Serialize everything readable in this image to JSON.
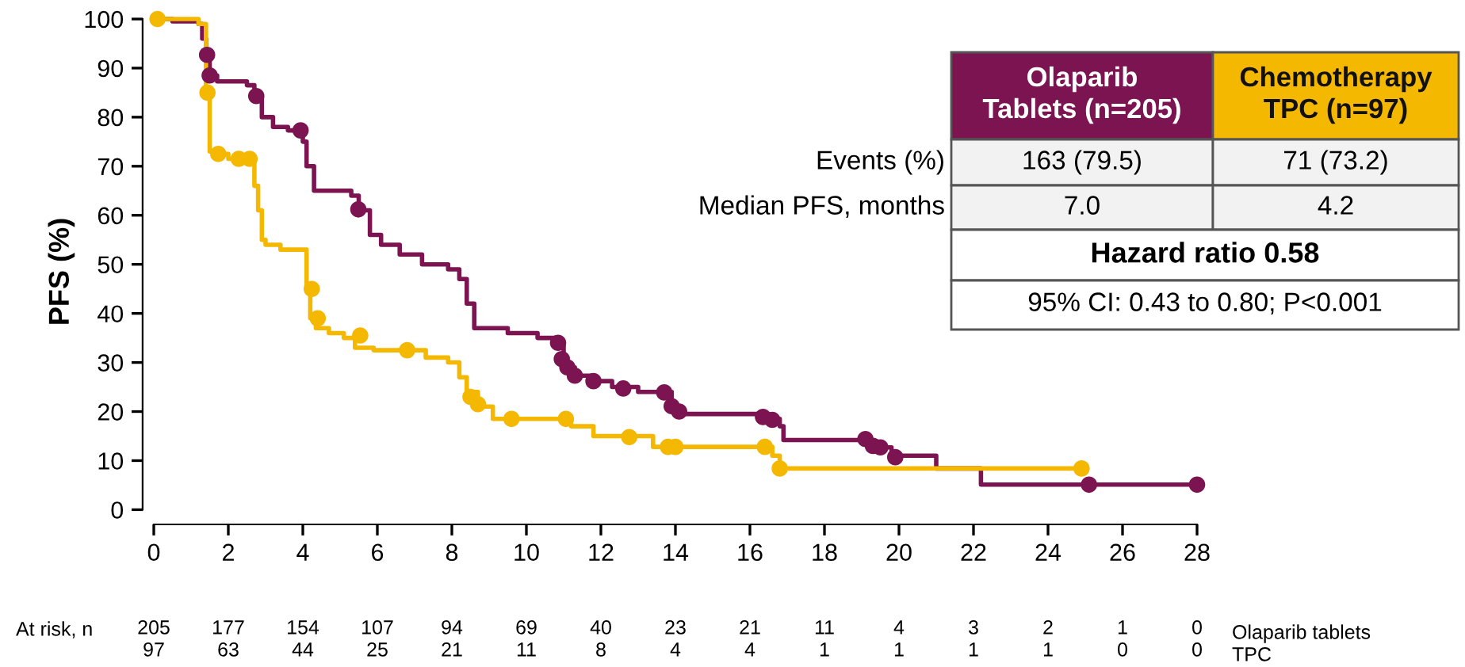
{
  "chart_data": {
    "type": "step",
    "ylabel": "PFS (%)",
    "xlim": [
      -0.3,
      28
    ],
    "ylim": [
      -3,
      100
    ],
    "xticks": [
      0,
      2,
      4,
      6,
      8,
      10,
      12,
      14,
      16,
      18,
      20,
      22,
      24,
      26,
      28
    ],
    "yticks": [
      0,
      10,
      20,
      30,
      40,
      50,
      60,
      70,
      80,
      90,
      100
    ],
    "grid": false,
    "legend": false,
    "line_style": "solid",
    "series": [
      {
        "color": "#7b1450",
        "x": [
          0,
          0.5,
          1.2,
          1.3,
          1.4,
          1.5,
          1.7,
          2.5,
          2.7,
          2.9,
          3.2,
          3.6,
          4.0,
          4.1,
          4.3,
          5.3,
          5.5,
          5.8,
          6.1,
          6.6,
          7.2,
          7.9,
          8.2,
          8.4,
          8.6,
          9.5,
          10.3,
          10.9,
          11.0,
          11.1,
          11.3,
          11.8,
          12.3,
          13.0,
          13.9,
          14.1,
          16.5,
          16.8,
          16.9,
          19.2,
          19.4,
          19.8,
          21.0,
          22.2,
          28
        ],
        "values": [
          100,
          99.5,
          99,
          96,
          92.7,
          88.5,
          87.3,
          86.5,
          84.3,
          80,
          78,
          77.3,
          75,
          70,
          65,
          64,
          61,
          56,
          54,
          52,
          50,
          49,
          47,
          42,
          37,
          36,
          35,
          34,
          31,
          29,
          27.3,
          26.2,
          25,
          24,
          21,
          19.5,
          18.5,
          17,
          14.2,
          14,
          12.7,
          11,
          8.4,
          5.1,
          5.1
        ]
      },
      {
        "color": "#f5b800",
        "x": [
          0,
          1.2,
          1.4,
          1.5,
          1.6,
          2.0,
          2.7,
          2.8,
          2.9,
          3.0,
          3.4,
          4.1,
          4.2,
          4.35,
          4.7,
          5.1,
          5.4,
          5.9,
          7.3,
          7.9,
          8.2,
          8.4,
          8.7,
          9.1,
          11.2,
          11.8,
          13.4,
          16.6,
          16.8,
          24.9
        ],
        "values": [
          100,
          99,
          85,
          73,
          72.5,
          71.5,
          66,
          61,
          55,
          54,
          53,
          45,
          39,
          37,
          36,
          35,
          33,
          32.5,
          31,
          30,
          27,
          24,
          21,
          18.5,
          17,
          15,
          12.8,
          11,
          8.4,
          8.4
        ]
      },
      {
        "type": "scatter",
        "color": "#7b1450",
        "marker": "circle",
        "x": [
          1.43,
          1.5,
          2.75,
          3.94,
          5.49,
          10.85,
          10.95,
          11.1,
          11.3,
          11.8,
          12.6,
          13.7,
          13.9,
          14.1,
          16.35,
          16.6,
          19.1,
          19.3,
          19.5,
          19.9,
          25.1,
          28
        ],
        "values": [
          92.7,
          88.5,
          84.3,
          77.3,
          61.2,
          34,
          30.7,
          29,
          27.3,
          26.2,
          24.7,
          23.9,
          21.1,
          20,
          18.9,
          18.3,
          14.4,
          13,
          12.7,
          10.7,
          5.1,
          5.1
        ]
      },
      {
        "type": "scatter",
        "color": "#f5b800",
        "marker": "circle",
        "x": [
          0.1,
          1.44,
          1.73,
          2.28,
          2.57,
          4.24,
          4.4,
          5.54,
          6.8,
          8.5,
          8.7,
          9.6,
          11.06,
          12.76,
          13.8,
          14.0,
          16.4,
          16.8,
          24.9
        ],
        "values": [
          100,
          85,
          72.5,
          71.5,
          71.5,
          45,
          39,
          35.5,
          32.5,
          23,
          21.5,
          18.5,
          18.5,
          14.8,
          12.8,
          12.8,
          12.8,
          8.4,
          8.4
        ]
      }
    ],
    "annotations": [
      "Olaparib\nTablets (n=205)",
      "Chemotherapy\nTPC (n=97)",
      "Events (%)",
      "163 (79.5)",
      "71 (73.2)",
      "Median PFS, months",
      "7.0",
      "4.2",
      "Hazard ratio 0.58",
      "95% CI: 0.43 to 0.80; P<0.001",
      "At risk, n",
      "Olaparib tablets",
      "TPC",
      "205",
      "177",
      "154",
      "107",
      "94",
      "69",
      "40",
      "23",
      "21",
      "11",
      "4",
      "3",
      "2",
      "1",
      "0",
      "97",
      "63",
      "44",
      "25",
      "21",
      "11",
      "8",
      "4",
      "4",
      "1",
      "1",
      "1",
      "1",
      "0",
      "0"
    ]
  }
}
